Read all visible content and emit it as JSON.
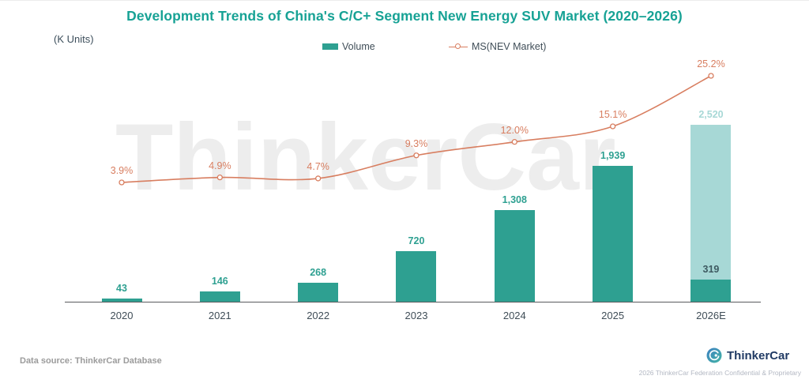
{
  "title": "Development Trends of China's C/C+ Segment New Energy SUV Market (2020–2026)",
  "y_axis_unit": "(K Units)",
  "watermark": "ThinkerCar",
  "legend": {
    "volume_label": "Volume",
    "ms_label": "MS(NEV Market)"
  },
  "footer": {
    "data_source": "Data source: ThinkerCar Database",
    "brand_name": "ThinkerCar",
    "confidential": "2026 ThinkerCar Federation Confidential & Proprietary"
  },
  "colors": {
    "title_teal": "#17a295",
    "bar_teal": "#2ea091",
    "bar_forecast_light": "#a7d8d6",
    "line_coral": "#d87e60",
    "axis_text": "#3f4d57",
    "segment_label_dark": "#3e5a61",
    "watermark_gray": "#ededed",
    "brand_navy": "#203a64"
  },
  "chart_data": {
    "type": "combo-bar-line",
    "categories": [
      "2020",
      "2021",
      "2022",
      "2023",
      "2024",
      "2025",
      "2026E"
    ],
    "series": [
      {
        "name": "Volume",
        "type": "bar",
        "values": [
          43,
          146,
          268,
          720,
          1308,
          1939,
          2520
        ],
        "labels": [
          "43",
          "146",
          "268",
          "720",
          "1,308",
          "1,939",
          "2,520"
        ]
      },
      {
        "name": "MS(NEV Market)",
        "type": "line",
        "values": [
          3.9,
          4.9,
          4.7,
          9.3,
          12.0,
          15.1,
          25.2
        ],
        "labels": [
          "3.9%",
          "4.9%",
          "4.7%",
          "9.3%",
          "12.0%",
          "15.1%",
          "25.2%"
        ]
      }
    ],
    "forecast_category": "2026E",
    "forecast_stacked_segment": {
      "value": 319,
      "label": "319"
    },
    "title": "Development Trends of China's C/C+ Segment New Energy SUV Market (2020–2026)",
    "ylabel": "(K Units)",
    "grid": false,
    "legend_position": "top-center",
    "y_axis_visible": false,
    "x_axis_range": [
      "2020",
      "2026E"
    ]
  }
}
